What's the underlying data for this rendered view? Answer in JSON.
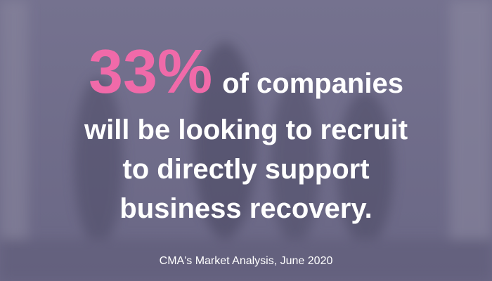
{
  "highlight": "33%",
  "lines": [
    "of companies",
    "will be looking to recruit",
    "to directly support",
    "business recovery."
  ],
  "source": "CMA's Market Analysis, June 2020"
}
